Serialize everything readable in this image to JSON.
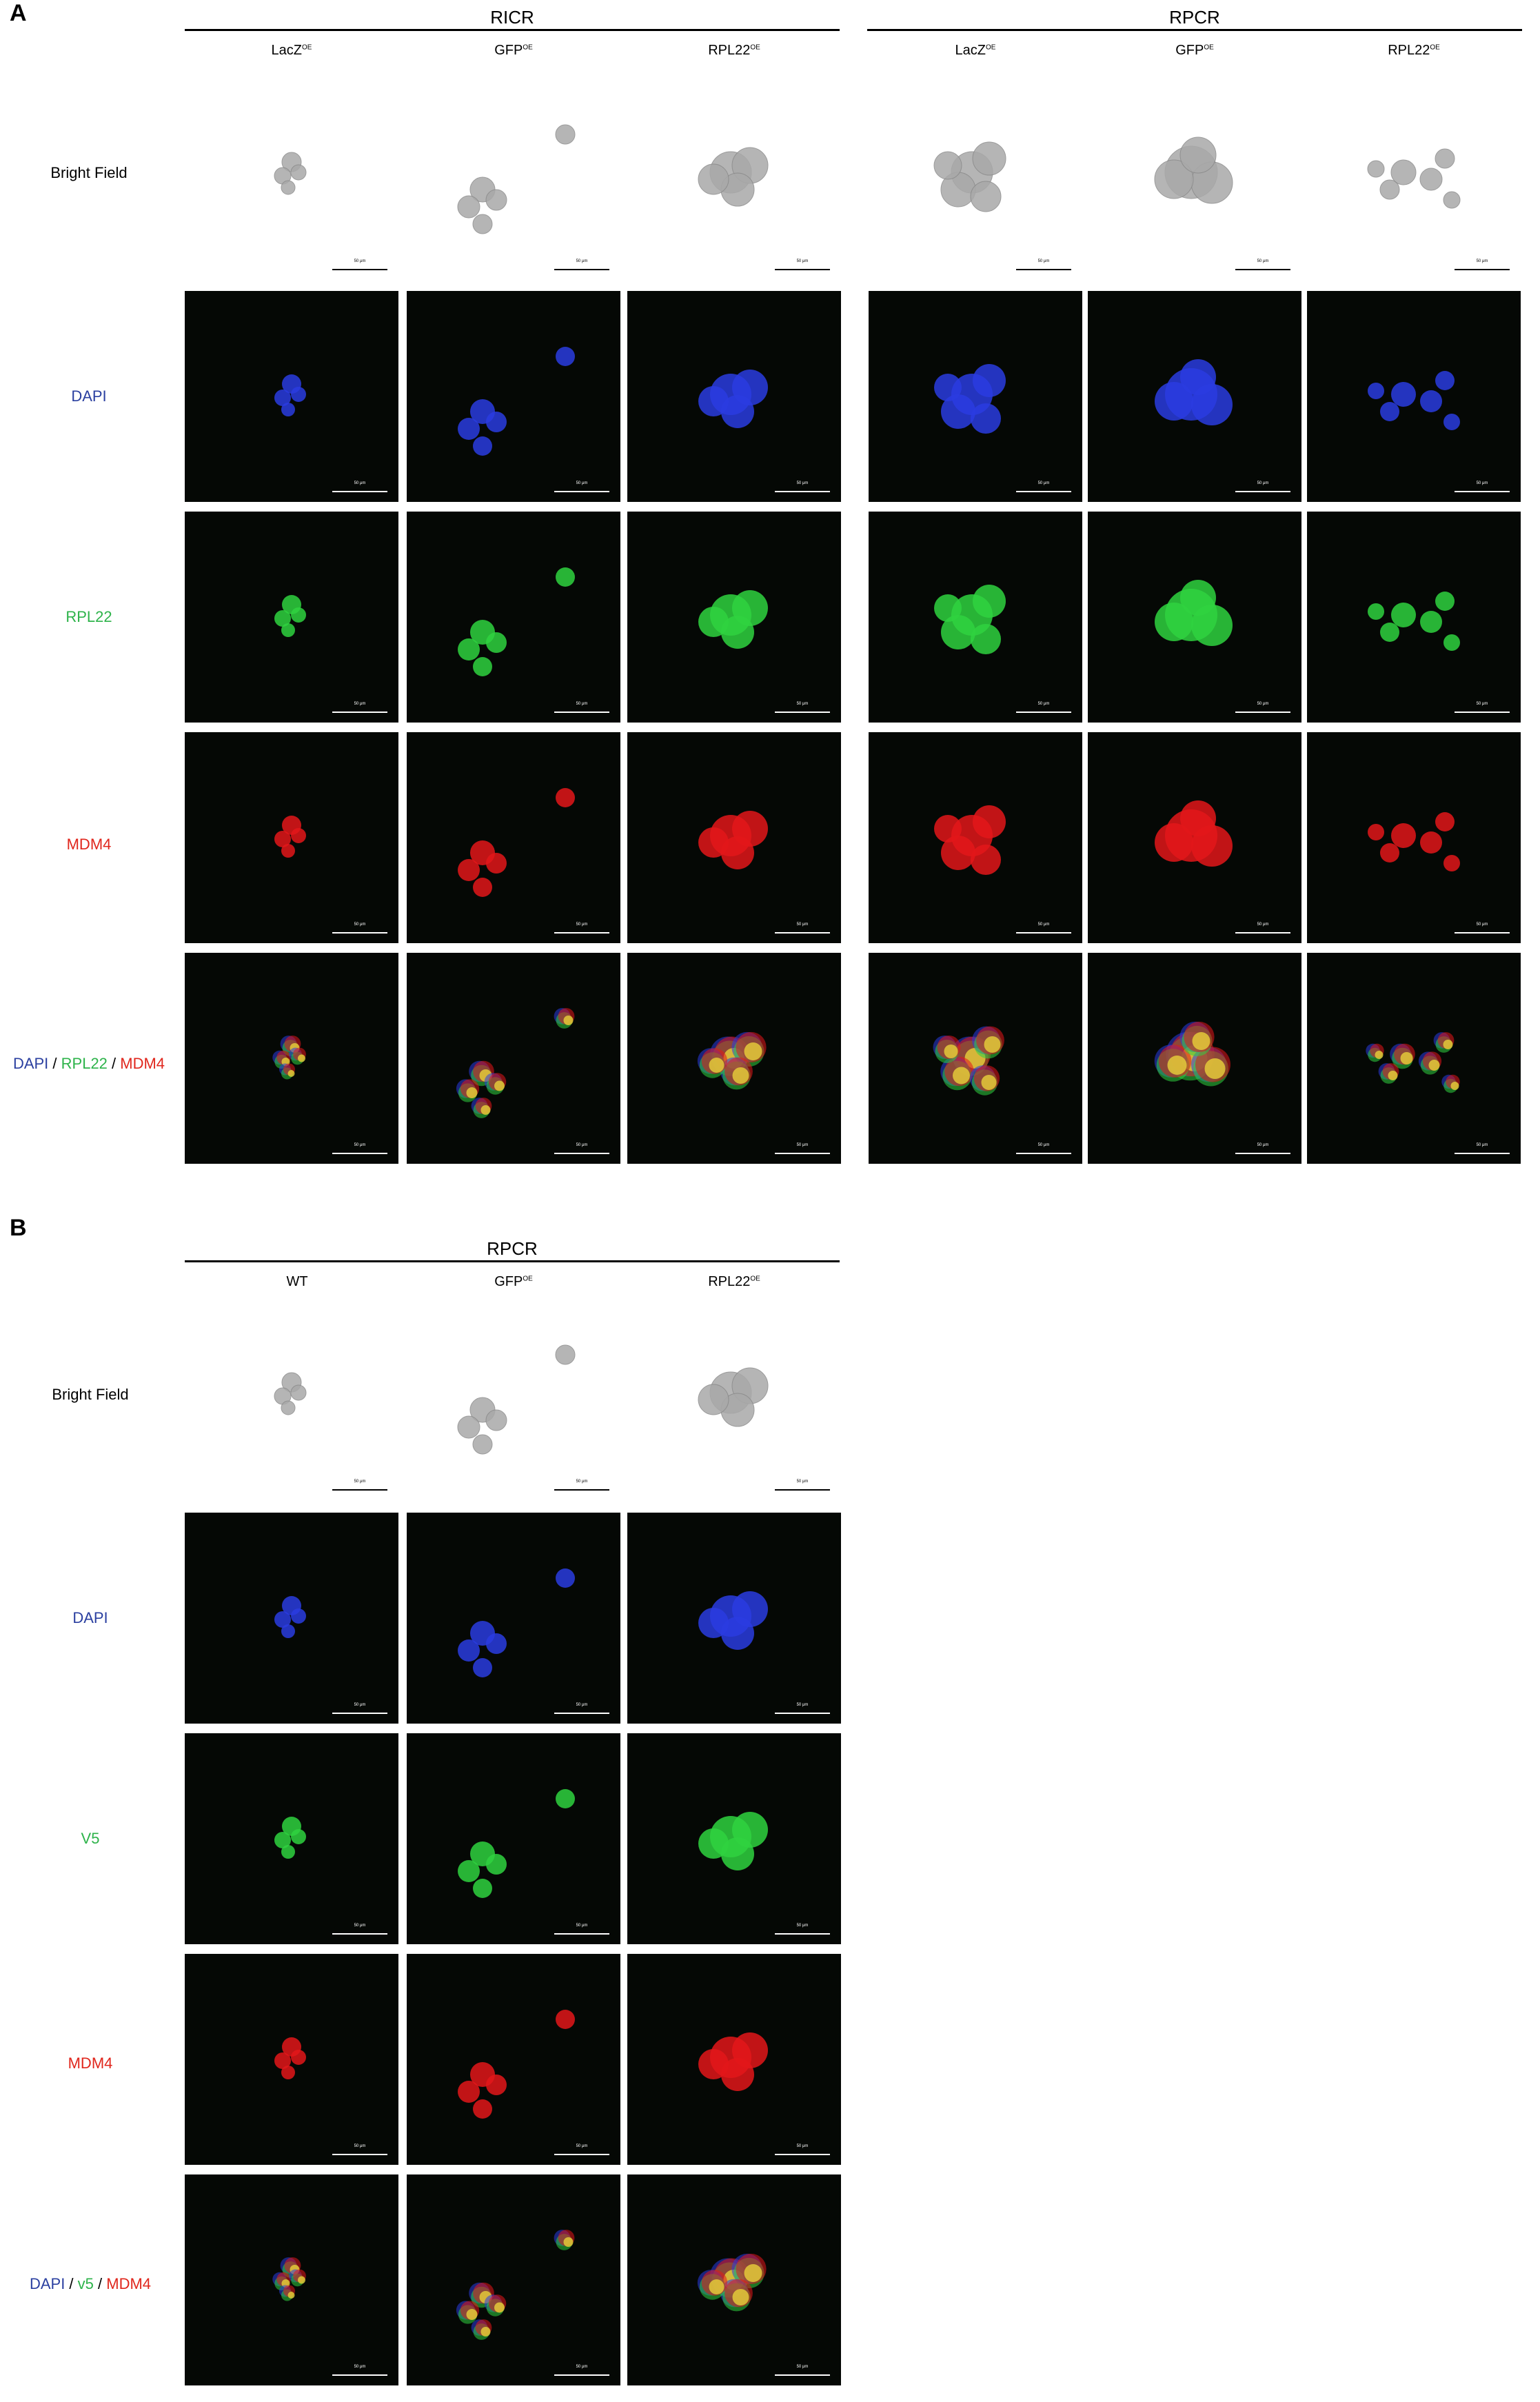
{
  "panel_a": {
    "letter": "A",
    "groups": [
      {
        "label": "RICR",
        "columns": [
          {
            "name": "LacZ",
            "sup": "OE"
          },
          {
            "name": "GFP",
            "sup": "OE"
          },
          {
            "name": "RPL22",
            "sup": "OE"
          }
        ]
      },
      {
        "label": "RPCR",
        "columns": [
          {
            "name": "LacZ",
            "sup": "OE"
          },
          {
            "name": "GFP",
            "sup": "OE"
          },
          {
            "name": "RPL22",
            "sup": "OE"
          }
        ]
      }
    ],
    "rows": {
      "bright_field": "Bright Field",
      "dapi": "DAPI",
      "rpl22": "RPL22",
      "mdm4": "MDM4",
      "merge_parts": [
        "DAPI",
        " / ",
        "RPL22",
        " / ",
        "MDM4"
      ]
    },
    "scale_bar_label": "50 μm"
  },
  "panel_b": {
    "letter": "B",
    "group_label": "RPCR",
    "columns": [
      {
        "name": "WT",
        "sup": ""
      },
      {
        "name": "GFP",
        "sup": "OE"
      },
      {
        "name": "RPL22",
        "sup": "OE"
      }
    ],
    "rows": {
      "bright_field": "Bright Field",
      "dapi": "DAPI",
      "v5": "V5",
      "mdm4": "MDM4",
      "merge_parts": [
        "DAPI",
        " / ",
        "v5",
        " / ",
        "MDM4"
      ]
    },
    "scale_bar_label": "50 μm"
  },
  "colors": {
    "dapi_label": "#2a3fa0",
    "green_label": "#2db34a",
    "red_label": "#e0261c",
    "black_label": "#000000"
  }
}
